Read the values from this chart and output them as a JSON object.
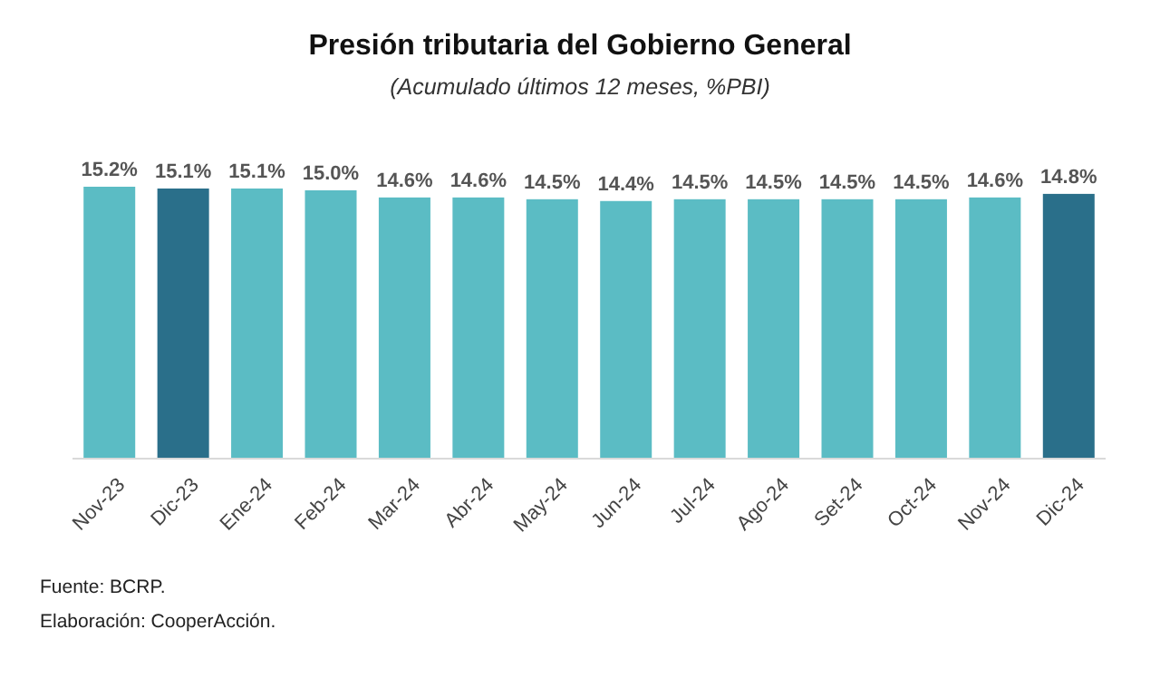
{
  "chart_data": {
    "type": "bar",
    "title": "Presión tributaria del Gobierno General",
    "subtitle": "(Acumulado últimos 12 meses, %PBI)",
    "categories": [
      "Nov-23",
      "Dic-23",
      "Ene-24",
      "Feb-24",
      "Mar-24",
      "Abr-24",
      "May-24",
      "Jun-24",
      "Jul-24",
      "Ago-24",
      "Set-24",
      "Oct-24",
      "Nov-24",
      "Dic-24"
    ],
    "values": [
      15.2,
      15.1,
      15.1,
      15.0,
      14.6,
      14.6,
      14.5,
      14.4,
      14.5,
      14.5,
      14.5,
      14.5,
      14.6,
      14.8
    ],
    "colors": [
      "#5bbcc4",
      "#2a6f8a",
      "#5bbcc4",
      "#5bbcc4",
      "#5bbcc4",
      "#5bbcc4",
      "#5bbcc4",
      "#5bbcc4",
      "#5bbcc4",
      "#5bbcc4",
      "#5bbcc4",
      "#5bbcc4",
      "#5bbcc4",
      "#2a6f8a"
    ],
    "value_labels": [
      "15.2%",
      "15.1%",
      "15.1%",
      "15.0%",
      "14.6%",
      "14.6%",
      "14.5%",
      "14.4%",
      "14.5%",
      "14.5%",
      "14.5%",
      "14.5%",
      "14.6%",
      "14.8%"
    ],
    "tick_labels": "x",
    "annotations": [
      "Fuente: BCRP.",
      "Elaboración: CooperAcción."
    ]
  }
}
